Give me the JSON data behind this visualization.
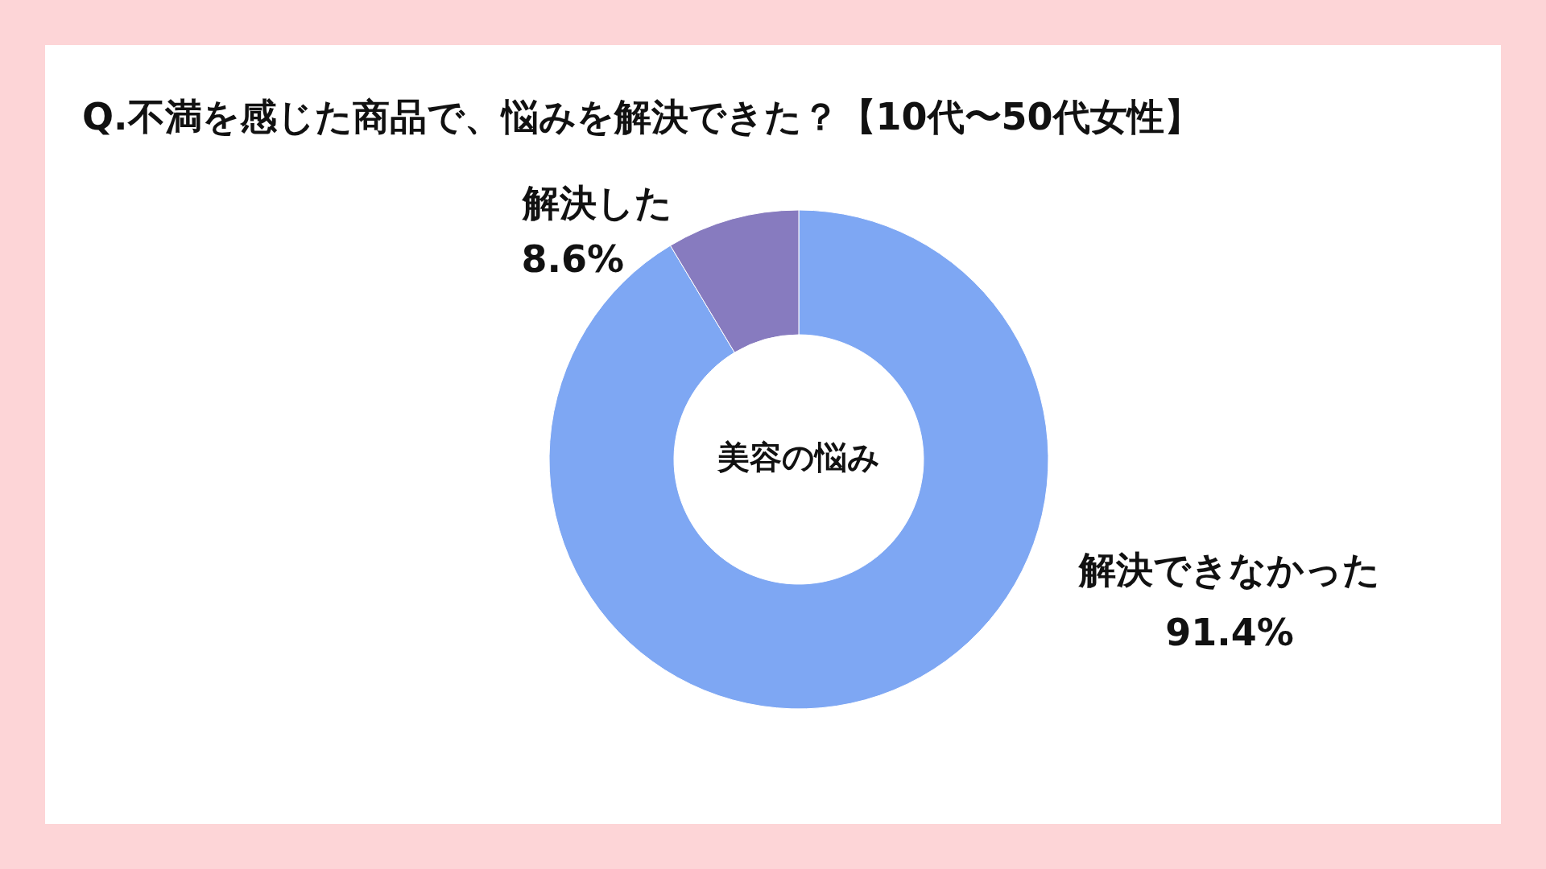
{
  "chart_data": {
    "type": "donut",
    "title": "Q.不満を感じた商品で、悩みを解決できた？【10代〜50代女性】",
    "categories": [
      "解決できなかった",
      "解決した"
    ],
    "values": [
      91.4,
      8.6
    ],
    "colors": [
      "#7ea7f3",
      "#877bbf"
    ],
    "value_labels": [
      "91.4%",
      "8.6%"
    ],
    "annotations": [
      "美容の悩み"
    ]
  }
}
